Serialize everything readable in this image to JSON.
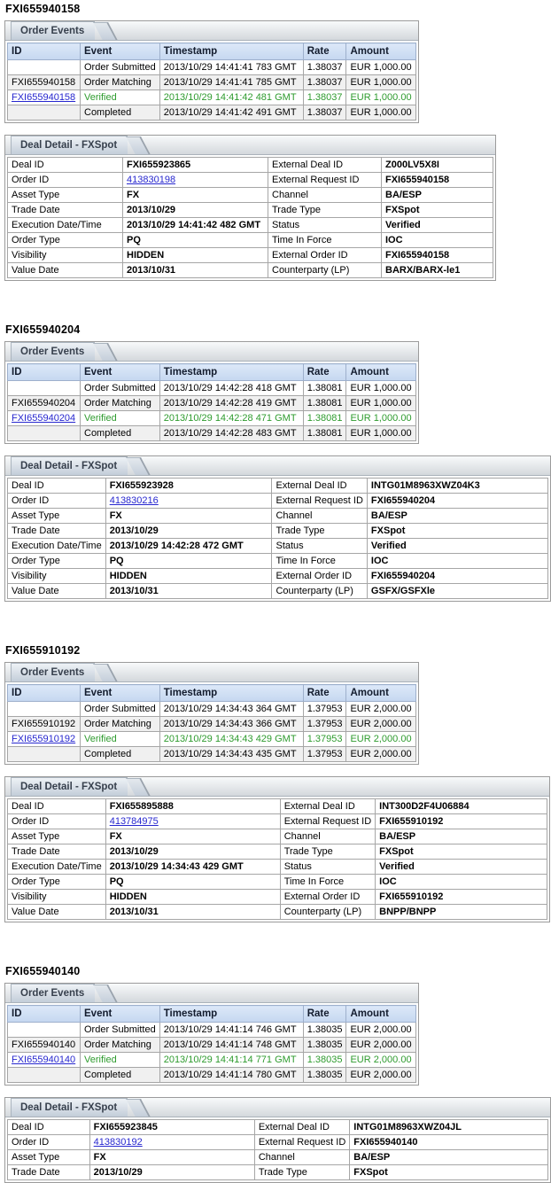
{
  "labels": {
    "order_events_tab": "Order Events",
    "deal_detail_tab": "Deal Detail - FXSpot"
  },
  "colors": {
    "link_blue": "#2727cf",
    "verified_green": "#2e9b2e",
    "table_header_bg": "#c5d7f0"
  },
  "order_events_columns": [
    "ID",
    "Event",
    "Timestamp",
    "Rate",
    "Amount"
  ],
  "sections": [
    {
      "title": "FXI655940158",
      "order_events": [
        {
          "id": "",
          "event": "Order Submitted",
          "timestamp": "2013/10/29 14:41:41 783 GMT",
          "rate": "1.38037",
          "amount": "EUR 1,000.00"
        },
        {
          "id": "FXI655940158",
          "event": "Order Matching",
          "timestamp": "2013/10/29 14:41:41 785 GMT",
          "rate": "1.38037",
          "amount": "EUR 1,000.00"
        },
        {
          "id": "FXI655940158",
          "event": "Verified",
          "timestamp": "2013/10/29 14:41:42 481 GMT",
          "rate": "1.38037",
          "amount": "EUR 1,000.00"
        },
        {
          "id": "",
          "event": "Completed",
          "timestamp": "2013/10/29 14:41:42 491 GMT",
          "rate": "1.38037",
          "amount": "EUR 1,000.00"
        }
      ],
      "deal_detail": [
        {
          "l1": "Deal ID",
          "v1": "FXI655923865",
          "l2": "External Deal ID",
          "v2": "Z000LV5X8I"
        },
        {
          "l1": "Order ID",
          "v1": "413830198",
          "l2": "External Request ID",
          "v2": "FXI655940158"
        },
        {
          "l1": "Asset Type",
          "v1": "FX",
          "l2": "Channel",
          "v2": "BA/ESP"
        },
        {
          "l1": "Trade Date",
          "v1": "2013/10/29",
          "l2": "Trade Type",
          "v2": "FXSpot"
        },
        {
          "l1": "Execution Date/Time",
          "v1": "2013/10/29 14:41:42 482 GMT",
          "l2": "Status",
          "v2": "Verified"
        },
        {
          "l1": "Order Type",
          "v1": "PQ",
          "l2": "Time In Force",
          "v2": "IOC"
        },
        {
          "l1": "Visibility",
          "v1": "HIDDEN",
          "l2": "External Order ID",
          "v2": "FXI655940158"
        },
        {
          "l1": "Value Date",
          "v1": "2013/10/31",
          "l2": "Counterparty (LP)",
          "v2": "BARX/BARX-le1"
        }
      ]
    },
    {
      "title": "FXI655940204",
      "order_events": [
        {
          "id": "",
          "event": "Order Submitted",
          "timestamp": "2013/10/29 14:42:28 418 GMT",
          "rate": "1.38081",
          "amount": "EUR 1,000.00"
        },
        {
          "id": "FXI655940204",
          "event": "Order Matching",
          "timestamp": "2013/10/29 14:42:28 419 GMT",
          "rate": "1.38081",
          "amount": "EUR 1,000.00"
        },
        {
          "id": "FXI655940204",
          "event": "Verified",
          "timestamp": "2013/10/29 14:42:28 471 GMT",
          "rate": "1.38081",
          "amount": "EUR 1,000.00"
        },
        {
          "id": "",
          "event": "Completed",
          "timestamp": "2013/10/29 14:42:28 483 GMT",
          "rate": "1.38081",
          "amount": "EUR 1,000.00"
        }
      ],
      "deal_detail": [
        {
          "l1": "Deal ID",
          "v1": "FXI655923928",
          "l2": "External Deal ID",
          "v2": "INTG01M8963XWZ04K3"
        },
        {
          "l1": "Order ID",
          "v1": "413830216",
          "l2": "External Request ID",
          "v2": "FXI655940204"
        },
        {
          "l1": "Asset Type",
          "v1": "FX",
          "l2": "Channel",
          "v2": "BA/ESP"
        },
        {
          "l1": "Trade Date",
          "v1": "2013/10/29",
          "l2": "Trade Type",
          "v2": "FXSpot"
        },
        {
          "l1": "Execution Date/Time",
          "v1": "2013/10/29 14:42:28 472 GMT",
          "l2": "Status",
          "v2": "Verified"
        },
        {
          "l1": "Order Type",
          "v1": "PQ",
          "l2": "Time In Force",
          "v2": "IOC"
        },
        {
          "l1": "Visibility",
          "v1": "HIDDEN",
          "l2": "External Order ID",
          "v2": "FXI655940204"
        },
        {
          "l1": "Value Date",
          "v1": "2013/10/31",
          "l2": "Counterparty (LP)",
          "v2": "GSFX/GSFXle"
        }
      ]
    },
    {
      "title": "FXI655910192",
      "order_events": [
        {
          "id": "",
          "event": "Order Submitted",
          "timestamp": "2013/10/29 14:34:43 364 GMT",
          "rate": "1.37953",
          "amount": "EUR 2,000.00"
        },
        {
          "id": "FXI655910192",
          "event": "Order Matching",
          "timestamp": "2013/10/29 14:34:43 366 GMT",
          "rate": "1.37953",
          "amount": "EUR 2,000.00"
        },
        {
          "id": "FXI655910192",
          "event": "Verified",
          "timestamp": "2013/10/29 14:34:43 429 GMT",
          "rate": "1.37953",
          "amount": "EUR 2,000.00"
        },
        {
          "id": "",
          "event": "Completed",
          "timestamp": "2013/10/29 14:34:43 435 GMT",
          "rate": "1.37953",
          "amount": "EUR 2,000.00"
        }
      ],
      "deal_detail": [
        {
          "l1": "Deal ID",
          "v1": "FXI655895888",
          "l2": "External Deal ID",
          "v2": "INT300D2F4U06884"
        },
        {
          "l1": "Order ID",
          "v1": "413784975",
          "l2": "External Request ID",
          "v2": "FXI655910192"
        },
        {
          "l1": "Asset Type",
          "v1": "FX",
          "l2": "Channel",
          "v2": "BA/ESP"
        },
        {
          "l1": "Trade Date",
          "v1": "2013/10/29",
          "l2": "Trade Type",
          "v2": "FXSpot"
        },
        {
          "l1": "Execution Date/Time",
          "v1": "2013/10/29 14:34:43 429 GMT",
          "l2": "Status",
          "v2": "Verified"
        },
        {
          "l1": "Order Type",
          "v1": "PQ",
          "l2": "Time In Force",
          "v2": "IOC"
        },
        {
          "l1": "Visibility",
          "v1": "HIDDEN",
          "l2": "External Order ID",
          "v2": "FXI655910192"
        },
        {
          "l1": "Value Date",
          "v1": "2013/10/31",
          "l2": "Counterparty (LP)",
          "v2": "BNPP/BNPP"
        }
      ]
    },
    {
      "title": "FXI655940140",
      "order_events": [
        {
          "id": "",
          "event": "Order Submitted",
          "timestamp": "2013/10/29 14:41:14 746 GMT",
          "rate": "1.38035",
          "amount": "EUR 2,000.00"
        },
        {
          "id": "FXI655940140",
          "event": "Order Matching",
          "timestamp": "2013/10/29 14:41:14 748 GMT",
          "rate": "1.38035",
          "amount": "EUR 2,000.00"
        },
        {
          "id": "FXI655940140",
          "event": "Verified",
          "timestamp": "2013/10/29 14:41:14 771 GMT",
          "rate": "1.38035",
          "amount": "EUR 2,000.00"
        },
        {
          "id": "",
          "event": "Completed",
          "timestamp": "2013/10/29 14:41:14 780 GMT",
          "rate": "1.38035",
          "amount": "EUR 2,000.00"
        }
      ],
      "deal_detail": [
        {
          "l1": "Deal ID",
          "v1": "FXI655923845",
          "l2": "External Deal ID",
          "v2": "INTG01M8963XWZ04JL"
        },
        {
          "l1": "Order ID",
          "v1": "413830192",
          "l2": "External Request ID",
          "v2": "FXI655940140"
        },
        {
          "l1": "Asset Type",
          "v1": "FX",
          "l2": "Channel",
          "v2": "BA/ESP"
        },
        {
          "l1": "Trade Date",
          "v1": "2013/10/29",
          "l2": "Trade Type",
          "v2": "FXSpot"
        }
      ]
    }
  ]
}
